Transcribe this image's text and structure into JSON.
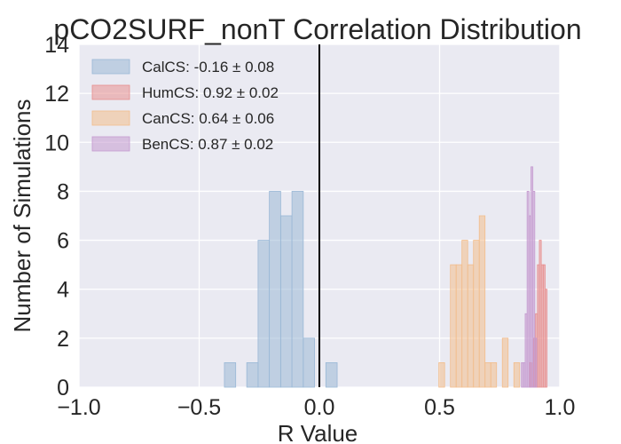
{
  "chart_data": {
    "type": "bar",
    "title": "pCO2SURF_nonT Correlation Distribution",
    "xlabel": "R Value",
    "ylabel": "Number of Simulations",
    "xlim": [
      -1.0,
      1.0
    ],
    "ylim": [
      0,
      14
    ],
    "x_ticks": [
      "−1.0",
      "−0.5",
      "0.0",
      "0.5",
      "1.0"
    ],
    "y_ticks": [
      "0",
      "2",
      "4",
      "6",
      "8",
      "10",
      "12",
      "14"
    ],
    "x_tick_values": [
      -1.0,
      -0.5,
      0.0,
      0.5,
      1.0
    ],
    "y_tick_values": [
      0,
      2,
      4,
      6,
      8,
      10,
      12,
      14
    ],
    "grid": true,
    "legend_position": "top-left",
    "vertical_line_x": 0.0,
    "series": [
      {
        "name": "CalCS: -0.16 ± 0.08",
        "color": "#9ab8d6",
        "bins": [
          {
            "x0": -0.395,
            "x1": -0.348,
            "count": 1
          },
          {
            "x0": -0.302,
            "x1": -0.255,
            "count": 1
          },
          {
            "x0": -0.255,
            "x1": -0.208,
            "count": 6
          },
          {
            "x0": -0.208,
            "x1": -0.161,
            "count": 8
          },
          {
            "x0": -0.161,
            "x1": -0.114,
            "count": 7
          },
          {
            "x0": -0.114,
            "x1": -0.067,
            "count": 8
          },
          {
            "x0": -0.067,
            "x1": -0.02,
            "count": 2
          },
          {
            "x0": 0.027,
            "x1": 0.074,
            "count": 1
          }
        ]
      },
      {
        "name": "HumCS: 0.92 ± 0.02",
        "color": "#e88f8f",
        "bins": [
          {
            "x0": 0.875,
            "x1": 0.883,
            "count": 1
          },
          {
            "x0": 0.891,
            "x1": 0.899,
            "count": 2
          },
          {
            "x0": 0.899,
            "x1": 0.907,
            "count": 3
          },
          {
            "x0": 0.907,
            "x1": 0.915,
            "count": 5
          },
          {
            "x0": 0.915,
            "x1": 0.923,
            "count": 6
          },
          {
            "x0": 0.923,
            "x1": 0.931,
            "count": 5
          },
          {
            "x0": 0.931,
            "x1": 0.939,
            "count": 5
          },
          {
            "x0": 0.939,
            "x1": 0.947,
            "count": 4
          }
        ]
      },
      {
        "name": "CanCS: 0.64 ± 0.06",
        "color": "#f2bd8c",
        "bins": [
          {
            "x0": 0.497,
            "x1": 0.521,
            "count": 1
          },
          {
            "x0": 0.545,
            "x1": 0.569,
            "count": 5
          },
          {
            "x0": 0.569,
            "x1": 0.593,
            "count": 5
          },
          {
            "x0": 0.593,
            "x1": 0.617,
            "count": 6
          },
          {
            "x0": 0.617,
            "x1": 0.641,
            "count": 5
          },
          {
            "x0": 0.641,
            "x1": 0.665,
            "count": 6
          },
          {
            "x0": 0.665,
            "x1": 0.689,
            "count": 7
          },
          {
            "x0": 0.689,
            "x1": 0.713,
            "count": 1
          },
          {
            "x0": 0.713,
            "x1": 0.737,
            "count": 1
          },
          {
            "x0": 0.761,
            "x1": 0.785,
            "count": 2
          },
          {
            "x0": 0.809,
            "x1": 0.833,
            "count": 1
          }
        ]
      },
      {
        "name": "BenCS: 0.87 ± 0.02",
        "color": "#c59ad0",
        "bins": [
          {
            "x0": 0.84,
            "x1": 0.848,
            "count": 1
          },
          {
            "x0": 0.848,
            "x1": 0.856,
            "count": 1
          },
          {
            "x0": 0.856,
            "x1": 0.864,
            "count": 3
          },
          {
            "x0": 0.864,
            "x1": 0.872,
            "count": 8
          },
          {
            "x0": 0.872,
            "x1": 0.88,
            "count": 7
          },
          {
            "x0": 0.88,
            "x1": 0.888,
            "count": 9
          },
          {
            "x0": 0.888,
            "x1": 0.896,
            "count": 8
          },
          {
            "x0": 0.896,
            "x1": 0.904,
            "count": 2
          }
        ]
      }
    ]
  }
}
